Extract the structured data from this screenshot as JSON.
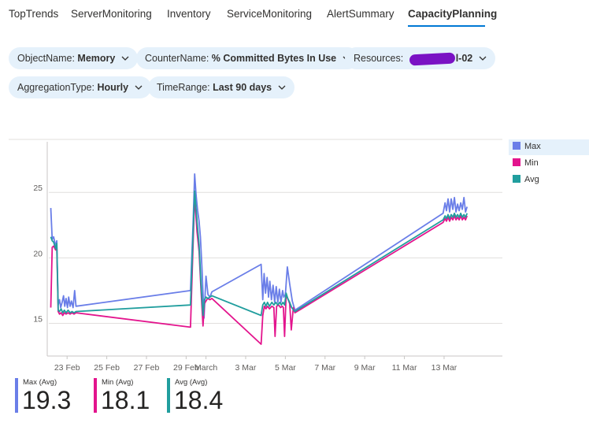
{
  "tabs": [
    {
      "label": "TopTrends"
    },
    {
      "label": "ServerMonitoring"
    },
    {
      "label": "Inventory"
    },
    {
      "label": "ServiceMonitoring"
    },
    {
      "label": "AlertSummary"
    },
    {
      "label": "CapacityPlanning",
      "active": true
    }
  ],
  "filters": {
    "object_name": {
      "label": "ObjectName: ",
      "value": "Memory"
    },
    "counter_name": {
      "label": "CounterName: ",
      "value": "% Committed Bytes In Use"
    },
    "resources": {
      "label": "Resources: ",
      "value": "l-02",
      "redacted": true
    },
    "aggregation_type": {
      "label": "AggregationType: ",
      "value": "Hourly"
    },
    "time_range": {
      "label": "TimeRange: ",
      "value": "Last 90 days"
    }
  },
  "legend": [
    {
      "label": "Max",
      "color": "#6a7ee8"
    },
    {
      "label": "Min",
      "color": "#e3148d"
    },
    {
      "label": "Avg",
      "color": "#219e9e"
    }
  ],
  "summary": [
    {
      "label": "Max (Avg)",
      "value": "19.3",
      "color": "#6a7ee8"
    },
    {
      "label": "Min (Avg)",
      "value": "18.1",
      "color": "#e3148d"
    },
    {
      "label": "Avg (Avg)",
      "value": "18.4",
      "color": "#219e9e"
    }
  ],
  "chart_data": {
    "type": "line",
    "ylim": [
      12.5,
      28.5
    ],
    "y_ticks": [
      15,
      20,
      25
    ],
    "xlim": [
      0,
      22.7
    ],
    "x_ticks": [
      {
        "label": "23 Feb",
        "x": 1
      },
      {
        "label": "25 Feb",
        "x": 3
      },
      {
        "label": "27 Feb",
        "x": 5
      },
      {
        "label": "29 Feb",
        "x": 7
      },
      {
        "label": "March",
        "x": 8
      },
      {
        "label": "3 Mar",
        "x": 10
      },
      {
        "label": "5 Mar",
        "x": 12
      },
      {
        "label": "7 Mar",
        "x": 14
      },
      {
        "label": "9 Mar",
        "x": 16
      },
      {
        "label": "11 Mar",
        "x": 18
      },
      {
        "label": "13 Mar",
        "x": 20
      }
    ],
    "series": [
      {
        "name": "Max",
        "color": "#6a7ee8",
        "points": [
          [
            0.18,
            23.8
          ],
          [
            0.25,
            21.4
          ],
          [
            0.32,
            21.6
          ],
          [
            0.42,
            20.9
          ],
          [
            0.48,
            21.3
          ],
          [
            0.55,
            16.4
          ],
          [
            0.62,
            16.8
          ],
          [
            0.68,
            16.2
          ],
          [
            0.75,
            16.6
          ],
          [
            0.82,
            17.1
          ],
          [
            0.88,
            16.3
          ],
          [
            0.95,
            16.9
          ],
          [
            1.02,
            16.2
          ],
          [
            1.08,
            17.0
          ],
          [
            1.15,
            16.3
          ],
          [
            1.22,
            16.7
          ],
          [
            1.3,
            16.2
          ],
          [
            1.38,
            17.5
          ],
          [
            1.45,
            16.3
          ],
          [
            7.22,
            17.5
          ],
          [
            7.35,
            22.6
          ],
          [
            7.43,
            26.4
          ],
          [
            7.5,
            24.8
          ],
          [
            7.58,
            23.6
          ],
          [
            7.65,
            22.8
          ],
          [
            7.72,
            21.6
          ],
          [
            7.8,
            19.2
          ],
          [
            7.9,
            15.4
          ],
          [
            8.0,
            18.6
          ],
          [
            8.1,
            17.2
          ],
          [
            8.2,
            17.0
          ],
          [
            8.3,
            17.4
          ],
          [
            10.78,
            19.5
          ],
          [
            10.86,
            16.8
          ],
          [
            10.93,
            18.8
          ],
          [
            11.0,
            17.3
          ],
          [
            11.08,
            18.5
          ],
          [
            11.15,
            17.0
          ],
          [
            11.22,
            18.2
          ],
          [
            11.3,
            16.8
          ],
          [
            11.38,
            17.9
          ],
          [
            11.46,
            16.6
          ],
          [
            11.54,
            17.8
          ],
          [
            11.62,
            16.6
          ],
          [
            11.7,
            17.6
          ],
          [
            11.78,
            16.6
          ],
          [
            11.86,
            17.5
          ],
          [
            11.92,
            17.0
          ],
          [
            12.0,
            17.2
          ],
          [
            12.1,
            19.3
          ],
          [
            12.22,
            18.0
          ],
          [
            12.35,
            16.7
          ],
          [
            12.48,
            16.0
          ],
          [
            19.95,
            23.4
          ],
          [
            20.05,
            24.2
          ],
          [
            20.12,
            23.6
          ],
          [
            20.2,
            24.5
          ],
          [
            20.28,
            23.5
          ],
          [
            20.36,
            24.5
          ],
          [
            20.44,
            23.7
          ],
          [
            20.52,
            24.6
          ],
          [
            20.6,
            23.5
          ],
          [
            20.68,
            24.1
          ],
          [
            20.76,
            23.6
          ],
          [
            20.84,
            24.2
          ],
          [
            20.92,
            23.7
          ],
          [
            21.0,
            24.6
          ],
          [
            21.08,
            23.5
          ],
          [
            21.16,
            23.9
          ]
        ]
      },
      {
        "name": "Min",
        "color": "#e3148d",
        "points": [
          [
            0.18,
            16.2
          ],
          [
            0.25,
            20.8
          ],
          [
            0.32,
            20.9
          ],
          [
            0.42,
            20.6
          ],
          [
            0.48,
            20.8
          ],
          [
            0.55,
            15.9
          ],
          [
            0.62,
            15.7
          ],
          [
            0.7,
            15.8
          ],
          [
            0.78,
            15.6
          ],
          [
            0.86,
            15.8
          ],
          [
            0.95,
            15.7
          ],
          [
            1.05,
            15.8
          ],
          [
            1.15,
            15.7
          ],
          [
            1.25,
            15.8
          ],
          [
            1.35,
            15.7
          ],
          [
            1.45,
            15.8
          ],
          [
            7.22,
            14.7
          ],
          [
            7.35,
            21.0
          ],
          [
            7.43,
            24.7
          ],
          [
            7.55,
            22.0
          ],
          [
            7.65,
            20.5
          ],
          [
            7.75,
            17.5
          ],
          [
            7.85,
            14.8
          ],
          [
            7.92,
            16.5
          ],
          [
            8.0,
            16.7
          ],
          [
            8.08,
            16.9
          ],
          [
            8.2,
            16.8
          ],
          [
            8.3,
            16.9
          ],
          [
            10.78,
            13.4
          ],
          [
            10.86,
            15.6
          ],
          [
            10.94,
            16.3
          ],
          [
            11.02,
            16.1
          ],
          [
            11.1,
            16.3
          ],
          [
            11.2,
            16.1
          ],
          [
            11.32,
            16.3
          ],
          [
            11.42,
            16.2
          ],
          [
            11.48,
            14.0
          ],
          [
            11.56,
            16.3
          ],
          [
            11.66,
            16.4
          ],
          [
            11.76,
            16.2
          ],
          [
            11.84,
            16.3
          ],
          [
            11.9,
            16.2
          ],
          [
            11.96,
            14.0
          ],
          [
            12.04,
            17.2
          ],
          [
            12.12,
            16.9
          ],
          [
            12.22,
            16.5
          ],
          [
            12.3,
            14.5
          ],
          [
            12.4,
            16.2
          ],
          [
            12.48,
            15.8
          ],
          [
            19.95,
            22.7
          ],
          [
            20.05,
            23.0
          ],
          [
            20.12,
            22.8
          ],
          [
            20.2,
            23.1
          ],
          [
            20.28,
            22.8
          ],
          [
            20.36,
            23.1
          ],
          [
            20.44,
            22.9
          ],
          [
            20.52,
            23.2
          ],
          [
            20.6,
            22.9
          ],
          [
            20.68,
            23.1
          ],
          [
            20.76,
            22.9
          ],
          [
            20.84,
            23.2
          ],
          [
            20.92,
            22.9
          ],
          [
            21.0,
            23.1
          ],
          [
            21.08,
            22.9
          ],
          [
            21.16,
            23.2
          ]
        ]
      },
      {
        "name": "Avg",
        "color": "#219e9e",
        "points": [
          [
            0.18,
            21.6
          ],
          [
            0.25,
            21.3
          ],
          [
            0.32,
            21.2
          ],
          [
            0.42,
            20.7
          ],
          [
            0.48,
            21.1
          ],
          [
            0.55,
            16.0
          ],
          [
            0.62,
            15.9
          ],
          [
            0.7,
            16.1
          ],
          [
            0.78,
            15.8
          ],
          [
            0.86,
            16.0
          ],
          [
            0.95,
            15.8
          ],
          [
            1.05,
            16.0
          ],
          [
            1.15,
            15.8
          ],
          [
            1.25,
            15.9
          ],
          [
            1.35,
            15.8
          ],
          [
            1.45,
            15.9
          ],
          [
            7.22,
            16.4
          ],
          [
            7.35,
            21.8
          ],
          [
            7.43,
            25.1
          ],
          [
            7.55,
            22.8
          ],
          [
            7.65,
            21.0
          ],
          [
            7.75,
            18.0
          ],
          [
            7.85,
            15.6
          ],
          [
            7.92,
            16.8
          ],
          [
            8.0,
            17.0
          ],
          [
            8.1,
            16.9
          ],
          [
            8.2,
            17.0
          ],
          [
            8.3,
            17.1
          ],
          [
            10.78,
            15.6
          ],
          [
            10.86,
            16.4
          ],
          [
            10.94,
            16.6
          ],
          [
            11.02,
            16.3
          ],
          [
            11.1,
            16.6
          ],
          [
            11.2,
            16.3
          ],
          [
            11.32,
            16.6
          ],
          [
            11.42,
            16.4
          ],
          [
            11.52,
            16.6
          ],
          [
            11.62,
            16.4
          ],
          [
            11.72,
            16.6
          ],
          [
            11.8,
            16.4
          ],
          [
            11.88,
            16.6
          ],
          [
            11.96,
            16.4
          ],
          [
            12.04,
            17.3
          ],
          [
            12.12,
            16.9
          ],
          [
            12.22,
            16.6
          ],
          [
            12.32,
            16.2
          ],
          [
            12.42,
            16.0
          ],
          [
            12.48,
            15.9
          ],
          [
            19.95,
            22.9
          ],
          [
            20.05,
            23.2
          ],
          [
            20.12,
            23.0
          ],
          [
            20.2,
            23.3
          ],
          [
            20.28,
            23.0
          ],
          [
            20.36,
            23.3
          ],
          [
            20.44,
            23.1
          ],
          [
            20.52,
            23.4
          ],
          [
            20.6,
            23.1
          ],
          [
            20.68,
            23.3
          ],
          [
            20.76,
            23.1
          ],
          [
            20.84,
            23.4
          ],
          [
            20.92,
            23.1
          ],
          [
            21.0,
            23.3
          ],
          [
            21.08,
            23.1
          ],
          [
            21.16,
            23.4
          ]
        ]
      }
    ]
  }
}
